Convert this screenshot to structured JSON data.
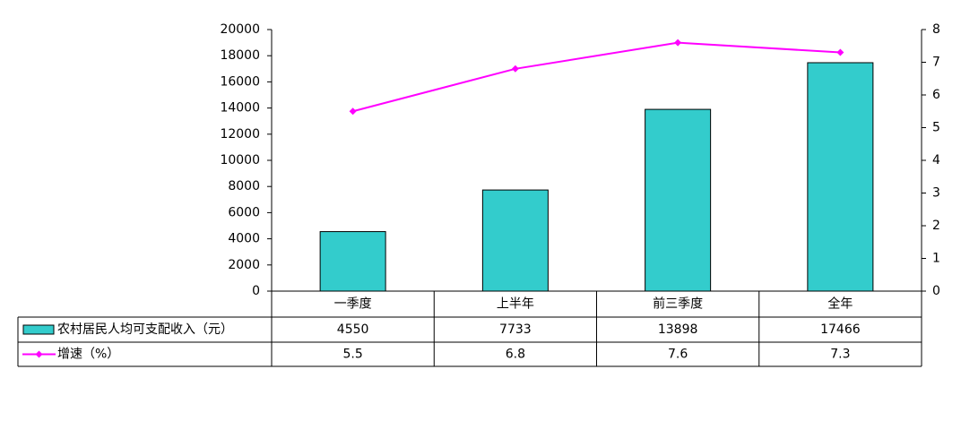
{
  "chart_data": {
    "type": "bar-line",
    "categories": [
      "一季度",
      "上半年",
      "前三季度",
      "全年"
    ],
    "series": [
      {
        "name": "农村居民人均可支配收入（元）",
        "type": "bar",
        "color": "#33cccc",
        "values": [
          4550,
          7733,
          13898,
          17466
        ]
      },
      {
        "name": "增速（%）",
        "type": "line",
        "color": "#ff00ff",
        "axis": "y2",
        "values": [
          5.5,
          6.8,
          7.6,
          7.3
        ]
      }
    ],
    "ylim": [
      0,
      20000
    ],
    "yticks": [
      0,
      2000,
      4000,
      6000,
      8000,
      10000,
      12000,
      14000,
      16000,
      18000,
      20000
    ],
    "y2lim": [
      0,
      8
    ],
    "y2ticks": [
      0,
      1,
      2,
      3,
      4,
      5,
      6,
      7,
      8
    ],
    "grid": false
  }
}
